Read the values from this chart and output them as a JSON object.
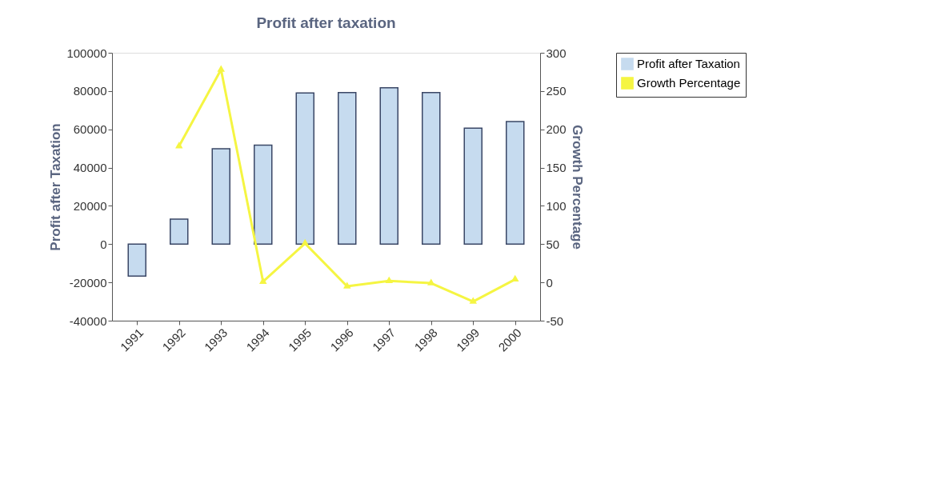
{
  "chart_data": {
    "type": "bar",
    "title": "Profit after taxation",
    "ylabel": "Profit after Taxation",
    "y2label": "Growth Percentage",
    "categories": [
      "1991",
      "1992",
      "1993",
      "1994",
      "1995",
      "1996",
      "1997",
      "1998",
      "1999",
      "2000"
    ],
    "series": [
      {
        "name": "Profit after Taxation",
        "color": "#c6dbef",
        "values": [
          -16700,
          13100,
          49800,
          51700,
          79000,
          79200,
          81700,
          79200,
          60600,
          64100
        ]
      },
      {
        "name": "Growth Percentage",
        "type": "line",
        "axis": "y2",
        "color": "#f5f542",
        "marker": "triangle",
        "values": [
          null,
          178,
          278,
          1,
          51,
          -5,
          2,
          -1,
          -25,
          4
        ]
      }
    ],
    "ylim": [
      -40000,
      100000
    ],
    "yticks": [
      -40000,
      -20000,
      0,
      20000,
      40000,
      60000,
      80000,
      100000
    ],
    "y2lim": [
      -50,
      300
    ],
    "y2ticks": [
      -50,
      0,
      50,
      100,
      150,
      200,
      250,
      300
    ],
    "grid": false,
    "legend": "right"
  }
}
